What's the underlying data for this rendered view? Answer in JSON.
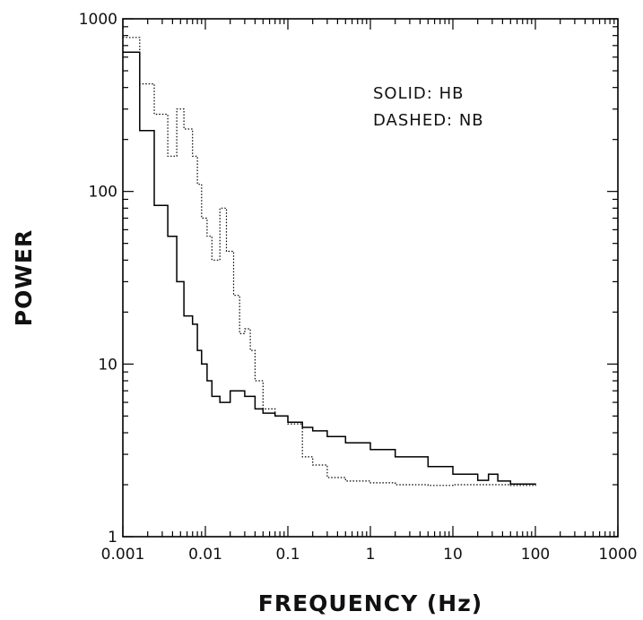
{
  "chart_data": {
    "type": "line",
    "title": "",
    "xlabel": "FREQUENCY (Hz)",
    "ylabel": "POWER",
    "x_scale": "log",
    "y_scale": "log",
    "xlim": [
      0.001,
      1000
    ],
    "ylim": [
      1,
      1000
    ],
    "x_ticks": [
      "0.001",
      "0.01",
      "0.1",
      "1",
      "10",
      "100",
      "1000"
    ],
    "y_ticks": [
      "1",
      "10",
      "100",
      "1000"
    ],
    "grid": false,
    "legend": {
      "placement": "top-right",
      "entries": [
        "SOLID: HB",
        "DASHED: NB"
      ]
    },
    "series": [
      {
        "name": "HB",
        "style": "solid",
        "x": [
          0.001,
          0.0016,
          0.0024,
          0.0035,
          0.0045,
          0.0055,
          0.007,
          0.008,
          0.009,
          0.0105,
          0.012,
          0.015,
          0.02,
          0.03,
          0.04,
          0.05,
          0.07,
          0.1,
          0.15,
          0.2,
          0.3,
          0.5,
          1,
          2,
          5,
          10,
          20,
          27,
          35,
          50,
          100
        ],
        "y": [
          640,
          225,
          83,
          55,
          30,
          19,
          17,
          12,
          10,
          8,
          6.5,
          6,
          7,
          6.5,
          5.5,
          5.2,
          5,
          4.6,
          4.3,
          4.1,
          3.8,
          3.5,
          3.2,
          2.9,
          2.55,
          2.3,
          2.12,
          2.3,
          2.1,
          2.02,
          2.0
        ]
      },
      {
        "name": "NB",
        "style": "dashed",
        "x": [
          0.001,
          0.0016,
          0.0024,
          0.0035,
          0.0045,
          0.0055,
          0.007,
          0.008,
          0.009,
          0.0105,
          0.012,
          0.015,
          0.018,
          0.022,
          0.026,
          0.03,
          0.035,
          0.04,
          0.05,
          0.07,
          0.1,
          0.15,
          0.2,
          0.3,
          0.5,
          1,
          2,
          5,
          10,
          20,
          50,
          100
        ],
        "y": [
          780,
          420,
          280,
          160,
          300,
          230,
          160,
          110,
          70,
          55,
          40,
          80,
          45,
          25,
          15,
          16,
          12,
          8,
          5.5,
          5,
          4.5,
          2.9,
          2.6,
          2.2,
          2.1,
          2.05,
          2.0,
          1.98,
          2.0,
          2.0,
          1.98,
          2.0
        ]
      }
    ]
  }
}
